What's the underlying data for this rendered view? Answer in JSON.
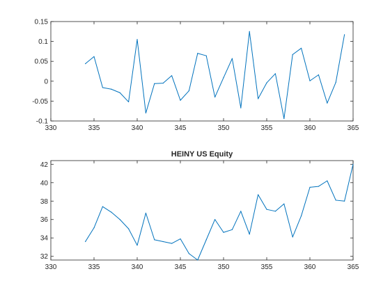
{
  "chart_data": [
    {
      "type": "line",
      "title": "",
      "xlabel": "",
      "ylabel": "",
      "xlim": [
        330,
        365
      ],
      "ylim": [
        -0.1,
        0.15
      ],
      "xticks": [
        330,
        335,
        340,
        345,
        350,
        355,
        360,
        365
      ],
      "yticks": [
        -0.1,
        -0.05,
        0,
        0.05,
        0.1,
        0.15
      ],
      "xtick_labels": [
        "330",
        "335",
        "340",
        "345",
        "350",
        "355",
        "360",
        "365"
      ],
      "ytick_labels": [
        "-0.1",
        "-0.05",
        "0",
        "0.05",
        "0.1",
        "0.15"
      ],
      "grid": false,
      "line_color": "#0072bd",
      "series": [
        {
          "x": [
            334,
            335,
            336,
            337,
            338,
            339,
            340,
            341,
            342,
            343,
            344,
            345,
            346,
            347,
            348,
            349,
            350,
            351,
            352,
            353,
            354,
            355,
            356,
            357,
            358,
            359,
            360,
            361,
            362,
            363,
            364
          ],
          "y": [
            0.044,
            0.062,
            -0.016,
            -0.02,
            -0.029,
            -0.052,
            0.105,
            -0.08,
            -0.006,
            -0.005,
            0.014,
            -0.048,
            -0.024,
            0.07,
            0.064,
            -0.04,
            0.009,
            0.057,
            -0.067,
            0.125,
            -0.044,
            -0.004,
            0.019,
            -0.094,
            0.067,
            0.083,
            0.001,
            0.016,
            -0.055,
            -0.003,
            0.117
          ]
        }
      ]
    },
    {
      "type": "line",
      "title": "HEINY US Equity",
      "xlabel": "",
      "ylabel": "",
      "xlim": [
        330,
        365
      ],
      "ylim": [
        31.6,
        42.4
      ],
      "xticks": [
        330,
        335,
        340,
        345,
        350,
        355,
        360,
        365
      ],
      "yticks": [
        32,
        34,
        36,
        38,
        40,
        42
      ],
      "xtick_labels": [
        "330",
        "335",
        "340",
        "345",
        "350",
        "355",
        "360",
        "365"
      ],
      "ytick_labels": [
        "32",
        "34",
        "36",
        "38",
        "40",
        "42"
      ],
      "grid": false,
      "line_color": "#0072bd",
      "series": [
        {
          "x": [
            334,
            335,
            336,
            337,
            338,
            339,
            340,
            341,
            342,
            343,
            344,
            345,
            346,
            347,
            348,
            349,
            350,
            351,
            352,
            353,
            354,
            355,
            356,
            357,
            358,
            359,
            360,
            361,
            362,
            363,
            364,
            365
          ],
          "y": [
            33.6,
            35.1,
            37.4,
            36.8,
            36.0,
            35.0,
            33.2,
            36.7,
            33.8,
            33.6,
            33.4,
            33.9,
            32.3,
            31.6,
            33.8,
            36.0,
            34.6,
            34.9,
            36.9,
            34.4,
            38.7,
            37.1,
            36.9,
            37.7,
            34.1,
            36.4,
            39.5,
            39.6,
            40.2,
            38.1,
            38.0,
            42.0
          ]
        }
      ]
    }
  ]
}
